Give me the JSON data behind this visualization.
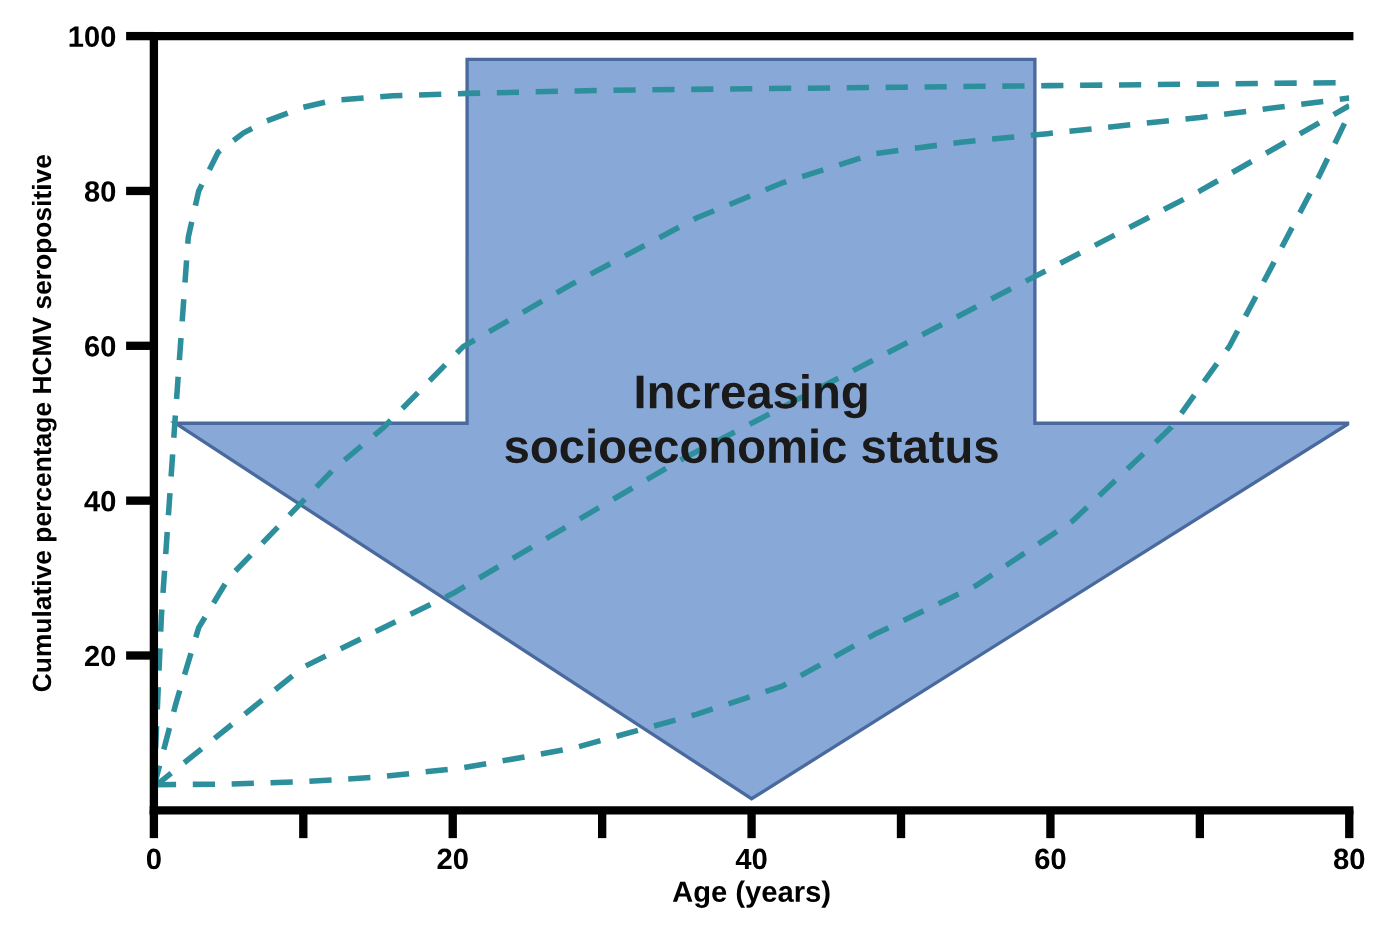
{
  "chart_data": {
    "type": "line",
    "xlabel": "Age (years)",
    "ylabel": "Cumulative percentage HCMV seropositive",
    "line_style": "dashed",
    "grid": false,
    "xlim": [
      0,
      80
    ],
    "ylim": [
      0,
      100
    ],
    "xticks": [
      0,
      {
        "value": 10,
        "label": null
      },
      20,
      {
        "value": 30,
        "label": null
      },
      40,
      {
        "value": 50,
        "label": null
      },
      60,
      {
        "value": 70,
        "label": null
      },
      80
    ],
    "yticks": [
      20,
      40,
      60,
      80,
      100
    ],
    "annotations": [
      "Increasing\nsocioeconomic status"
    ],
    "series": [
      {
        "color": "#2e8f9c",
        "x": [
          0,
          0.5,
          1.4,
          2.3,
          3,
          4.3,
          6,
          7.5,
          10,
          12,
          16,
          21,
          30,
          40,
          50,
          60,
          70,
          80
        ],
        "values": [
          3,
          25,
          50,
          74,
          80,
          85,
          87.5,
          89,
          90.8,
          91.7,
          92.3,
          92.6,
          93,
          93.2,
          93.4,
          93.6,
          93.8,
          94
        ]
      },
      {
        "color": "#2e8f9c",
        "x": [
          0,
          1.5,
          3,
          5,
          8.3,
          12,
          15.4,
          20.7,
          28,
          36.3,
          42,
          48.2,
          54,
          59.8,
          70,
          80
        ],
        "values": [
          3,
          14,
          23.6,
          30,
          36.6,
          44,
          49.5,
          59.9,
          68,
          76.5,
          81,
          84.8,
          86.3,
          87.4,
          89.5,
          92
        ]
      },
      {
        "color": "#2e8f9c",
        "x": [
          0,
          10,
          20,
          35,
          48,
          60,
          70,
          80
        ],
        "values": [
          3,
          18.5,
          28,
          45,
          58,
          70,
          80,
          91
        ]
      },
      {
        "color": "#2e8f9c",
        "x": [
          0,
          5,
          10,
          15,
          20.7,
          28,
          36.3,
          42,
          48.2,
          55,
          61.5,
          68.1,
          72,
          74.8,
          78,
          80
        ],
        "values": [
          3.3,
          3.4,
          3.7,
          4.3,
          5.5,
          8,
          12.4,
          16,
          22.7,
          29,
          37.4,
          49.5,
          60,
          70.2,
          82,
          90
        ]
      }
    ]
  }
}
